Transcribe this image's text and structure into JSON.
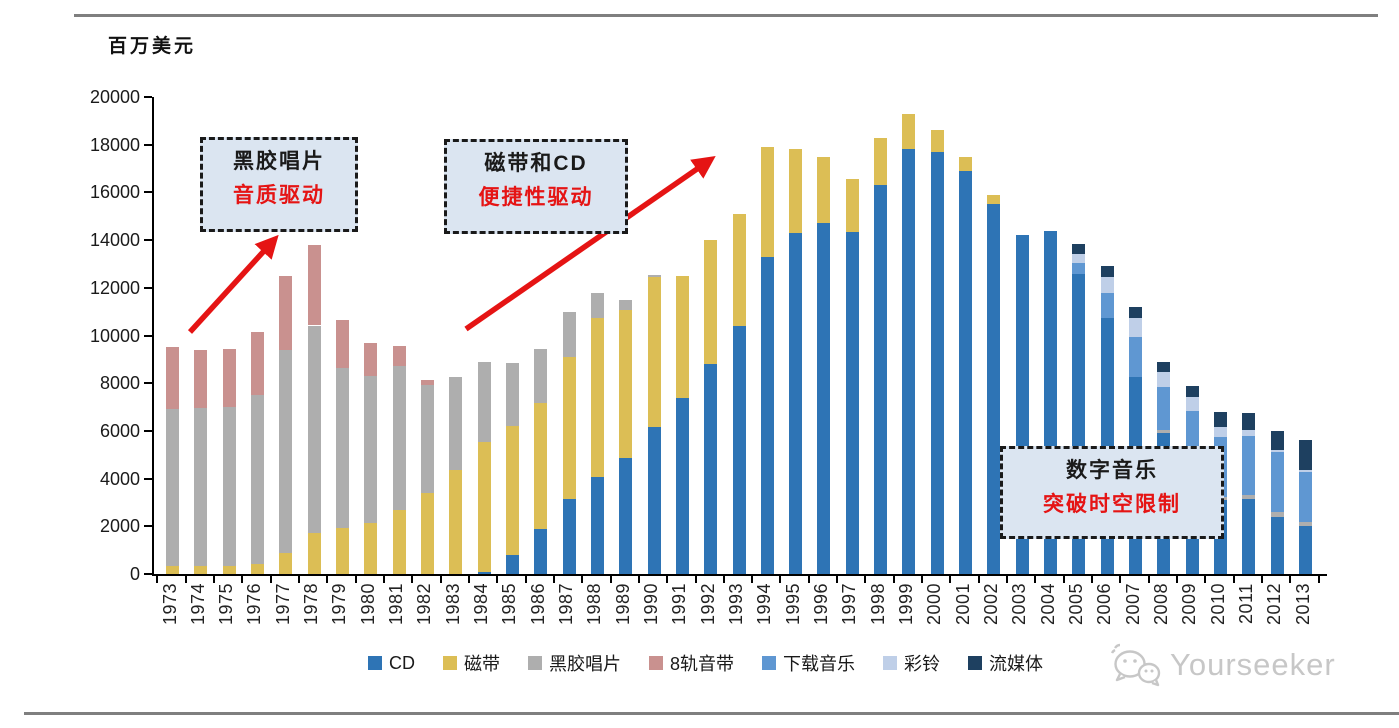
{
  "page": {
    "unit_label": "百万美元",
    "watermark_text": "Yourseeker"
  },
  "annotations": [
    {
      "line1": "黑胶唱片",
      "line2": "音质驱动"
    },
    {
      "line1": "磁带和CD",
      "line2": "便捷性驱动"
    },
    {
      "line1": "数字音乐",
      "line2": "突破时空限制"
    }
  ],
  "colors": {
    "accent_red": "#e51414",
    "box_bg": "#dbe5f1",
    "box_border": "#1a1a1a",
    "rule_gray": "#7f7f7f",
    "watermark_gray": "#c7c7c7",
    "axis_black": "#000000"
  },
  "chart_data": {
    "type": "bar",
    "stacked": true,
    "title": "",
    "xlabel": "",
    "ylabel": "百万美元",
    "ylim": [
      0,
      20000
    ],
    "ytick_step": 2000,
    "grid": false,
    "legend_position": "bottom",
    "categories": [
      "1973",
      "1974",
      "1975",
      "1976",
      "1977",
      "1978",
      "1979",
      "1980",
      "1981",
      "1982",
      "1983",
      "1984",
      "1985",
      "1986",
      "1987",
      "1988",
      "1989",
      "1990",
      "1991",
      "1992",
      "1993",
      "1994",
      "1995",
      "1996",
      "1997",
      "1998",
      "1999",
      "2000",
      "2001",
      "2002",
      "2003",
      "2004",
      "2005",
      "2006",
      "2007",
      "2008",
      "2009",
      "2010",
      "2011",
      "2012",
      "2013"
    ],
    "series": [
      {
        "name": "CD",
        "color": "#2e74b5",
        "values": [
          0,
          0,
          0,
          0,
          0,
          0,
          0,
          0,
          0,
          0,
          0,
          100,
          800,
          1900,
          3150,
          4050,
          4850,
          6150,
          7400,
          8800,
          10400,
          13300,
          14300,
          14700,
          14350,
          16300,
          17800,
          17700,
          16900,
          15500,
          14200,
          14400,
          12600,
          10750,
          8250,
          5900,
          5200,
          3100,
          3150,
          2400,
          2000
        ]
      },
      {
        "name": "磁带",
        "color": "#dcbe55",
        "values": [
          350,
          350,
          350,
          400,
          900,
          1700,
          1950,
          2150,
          2700,
          3400,
          4350,
          5450,
          5400,
          5250,
          5950,
          6700,
          6200,
          6300,
          5100,
          5200,
          4700,
          4600,
          3500,
          2800,
          2200,
          2000,
          1500,
          900,
          600,
          400,
          0,
          0,
          0,
          0,
          0,
          0,
          0,
          0,
          0,
          0,
          0
        ]
      },
      {
        "name": "黑胶唱片",
        "color": "#aeaeae",
        "values": [
          6550,
          6600,
          6650,
          7100,
          8480,
          8720,
          6700,
          6140,
          6010,
          4540,
          3910,
          3350,
          2650,
          2300,
          1900,
          1050,
          450,
          100,
          0,
          0,
          0,
          0,
          0,
          0,
          0,
          0,
          0,
          0,
          0,
          0,
          0,
          0,
          0,
          0,
          0,
          150,
          120,
          140,
          150,
          200,
          180
        ]
      },
      {
        "name": "8轨音带",
        "color": "#c9918f",
        "values": [
          2600,
          2450,
          2450,
          2650,
          3100,
          3380,
          2000,
          1400,
          840,
          210,
          0,
          0,
          0,
          0,
          0,
          0,
          0,
          0,
          0,
          0,
          0,
          0,
          0,
          0,
          0,
          0,
          0,
          0,
          0,
          0,
          0,
          0,
          0,
          0,
          0,
          0,
          0,
          0,
          0,
          0,
          0
        ]
      },
      {
        "name": "下载音乐",
        "color": "#5f97d2",
        "values": [
          0,
          0,
          0,
          0,
          0,
          0,
          0,
          0,
          0,
          0,
          0,
          0,
          0,
          0,
          0,
          0,
          0,
          0,
          0,
          0,
          0,
          0,
          0,
          0,
          0,
          0,
          0,
          0,
          0,
          0,
          0,
          0,
          450,
          1050,
          1700,
          1800,
          1500,
          2520,
          2500,
          2500,
          2100
        ]
      },
      {
        "name": "彩铃",
        "color": "#bfcfe8",
        "values": [
          0,
          0,
          0,
          0,
          0,
          0,
          0,
          0,
          0,
          0,
          0,
          0,
          0,
          0,
          0,
          0,
          0,
          0,
          0,
          0,
          0,
          0,
          0,
          0,
          0,
          0,
          0,
          0,
          0,
          0,
          0,
          0,
          350,
          650,
          800,
          600,
          600,
          420,
          250,
          100,
          100
        ]
      },
      {
        "name": "流媒体",
        "color": "#1e4060",
        "values": [
          0,
          0,
          0,
          0,
          0,
          0,
          0,
          0,
          0,
          0,
          0,
          0,
          0,
          0,
          0,
          0,
          0,
          0,
          0,
          0,
          0,
          0,
          0,
          0,
          0,
          0,
          0,
          0,
          0,
          0,
          0,
          0,
          450,
          450,
          450,
          450,
          480,
          630,
          700,
          800,
          1250
        ]
      }
    ]
  }
}
